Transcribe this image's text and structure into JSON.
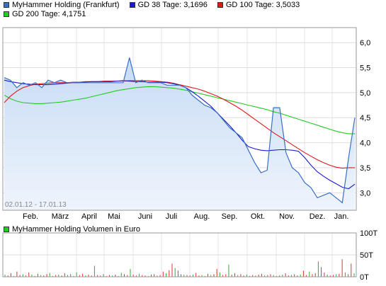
{
  "legend": [
    {
      "label": "MyHammer Holding (Frankfurt)",
      "color": "#3a6fc4"
    },
    {
      "label": "GD 38 Tage: 3,1696",
      "color": "#1a1acc"
    },
    {
      "label": "GD 100 Tage: 3,5033",
      "color": "#e01818"
    },
    {
      "label": "GD 200 Tage: 4,1751",
      "color": "#22cc22"
    }
  ],
  "date_range": "02.01.12 - 17.01.13",
  "volume_legend": {
    "label": "MyHammer Holding Volumen in Euro",
    "color": "#22cc22"
  },
  "chart_data": [
    {
      "type": "line",
      "title": "",
      "x_tick_labels": [
        "Feb.",
        "März",
        "April",
        "Mai",
        "Juni",
        "Juli",
        "Aug.",
        "Sep.",
        "Okt.",
        "Nov.",
        "Dez.",
        "Jan."
      ],
      "y_ticks": [
        "3,0",
        "3,5",
        "4,0",
        "4,5",
        "5,0",
        "5,5",
        "6,0"
      ],
      "y_tick_values": [
        3.0,
        3.5,
        4.0,
        4.5,
        5.0,
        5.5,
        6.0
      ],
      "ylim": [
        2.65,
        6.3
      ],
      "x_index_range": [
        0,
        54
      ],
      "grid": true,
      "series": [
        {
          "name": "MyHammer Holding (Frankfurt)",
          "color": "#3a6fc4",
          "values": [
            5.3,
            5.25,
            5.1,
            5.2,
            5.15,
            5.2,
            5.1,
            5.25,
            5.2,
            5.25,
            5.2,
            5.2,
            5.2,
            5.2,
            5.2,
            5.2,
            5.2,
            5.2,
            5.2,
            5.2,
            5.7,
            5.2,
            5.25,
            5.2,
            5.2,
            5.2,
            5.15,
            5.15,
            5.15,
            5.1,
            4.95,
            4.85,
            4.75,
            4.7,
            4.6,
            4.45,
            4.3,
            4.2,
            4.1,
            3.85,
            3.6,
            3.4,
            3.45,
            4.7,
            4.7,
            3.8,
            3.5,
            3.4,
            3.2,
            3.1,
            2.9,
            2.95,
            3.0,
            2.9,
            2.8,
            3.7,
            4.5
          ]
        },
        {
          "name": "GD 38 Tage",
          "color": "#1a1acc",
          "values": [
            5.25,
            5.22,
            5.2,
            5.18,
            5.17,
            5.16,
            5.16,
            5.16,
            5.17,
            5.18,
            5.19,
            5.2,
            5.2,
            5.21,
            5.22,
            5.22,
            5.22,
            5.22,
            5.23,
            5.24,
            5.23,
            5.22,
            5.22,
            5.21,
            5.21,
            5.21,
            5.2,
            5.18,
            5.15,
            5.1,
            5.02,
            4.93,
            4.83,
            4.73,
            4.6,
            4.47,
            4.34,
            4.2,
            4.05,
            3.92,
            3.88,
            3.85,
            3.84,
            3.85,
            3.86,
            3.86,
            3.85,
            3.83,
            3.7,
            3.55,
            3.42,
            3.33,
            3.25,
            3.18,
            3.11,
            3.08,
            3.17
          ]
        },
        {
          "name": "GD 100 Tage",
          "color": "#e01818",
          "values": [
            4.8,
            4.93,
            5.03,
            5.1,
            5.14,
            5.17,
            5.18,
            5.19,
            5.2,
            5.2,
            5.2,
            5.21,
            5.21,
            5.22,
            5.22,
            5.22,
            5.23,
            5.23,
            5.23,
            5.23,
            5.24,
            5.24,
            5.24,
            5.24,
            5.23,
            5.22,
            5.21,
            5.19,
            5.16,
            5.13,
            5.1,
            5.07,
            5.03,
            4.98,
            4.93,
            4.87,
            4.8,
            4.73,
            4.65,
            4.56,
            4.47,
            4.38,
            4.29,
            4.2,
            4.12,
            4.04,
            3.96,
            3.88,
            3.8,
            3.73,
            3.66,
            3.6,
            3.55,
            3.51,
            3.49,
            3.5,
            3.5
          ]
        },
        {
          "name": "GD 200 Tage",
          "color": "#22cc22",
          "values": [
            4.95,
            4.88,
            4.83,
            4.8,
            4.79,
            4.78,
            4.78,
            4.79,
            4.8,
            4.81,
            4.83,
            4.85,
            4.87,
            4.89,
            4.92,
            4.95,
            4.98,
            5.01,
            5.04,
            5.06,
            5.08,
            5.1,
            5.11,
            5.12,
            5.12,
            5.11,
            5.1,
            5.09,
            5.07,
            5.05,
            5.02,
            4.99,
            4.96,
            4.93,
            4.9,
            4.87,
            4.84,
            4.81,
            4.78,
            4.75,
            4.72,
            4.69,
            4.66,
            4.62,
            4.59,
            4.55,
            4.51,
            4.47,
            4.43,
            4.39,
            4.35,
            4.31,
            4.27,
            4.23,
            4.2,
            4.18,
            4.18
          ]
        }
      ]
    },
    {
      "type": "bar",
      "title": "",
      "y_ticks": [
        "0T",
        "50T",
        "100T"
      ],
      "y_tick_values": [
        0,
        50,
        100
      ],
      "ylim": [
        0,
        100
      ],
      "grid": true,
      "color": "#dd3333",
      "values": [
        5,
        3,
        8,
        2,
        12,
        4,
        6,
        3,
        10,
        5,
        2,
        7,
        4,
        3,
        6,
        9,
        2,
        4,
        5,
        3,
        8,
        4,
        6,
        2,
        10,
        4,
        7,
        3,
        5,
        3,
        25,
        4,
        3,
        6,
        2,
        4,
        3,
        5,
        2,
        9,
        6,
        4,
        18,
        5,
        3,
        7,
        4,
        3,
        2,
        5,
        6,
        3,
        4,
        12,
        8,
        15,
        30,
        20,
        14,
        6,
        5,
        4,
        3,
        5,
        9,
        3,
        4,
        2,
        7,
        4,
        6,
        18,
        10,
        4,
        6,
        28,
        5,
        8,
        4,
        6,
        3,
        5,
        2,
        4,
        3,
        5,
        7,
        3,
        4,
        6,
        4,
        2,
        3,
        5,
        8,
        3,
        4,
        6,
        3,
        5,
        14,
        4,
        12,
        6,
        8,
        35,
        22,
        10,
        5,
        3,
        4,
        6,
        7,
        40,
        10,
        6,
        30,
        8
      ]
    }
  ]
}
